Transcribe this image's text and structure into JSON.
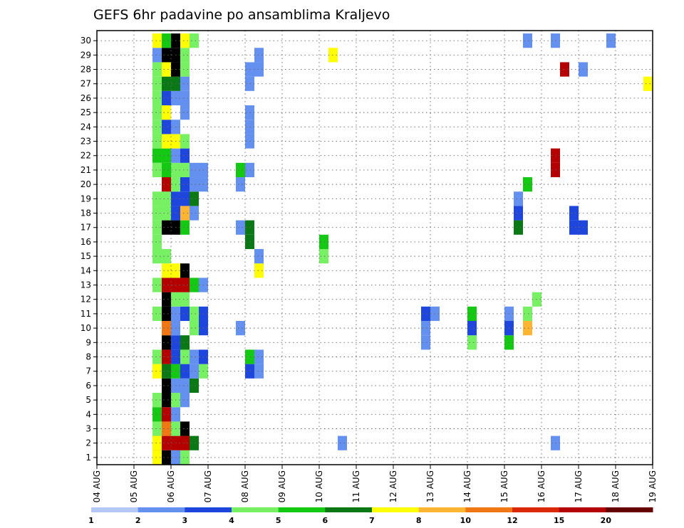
{
  "chart_data": {
    "type": "heatmap",
    "title": "GEFS 6hr padavine po ansamblima Kraljevo",
    "x_tick_labels": [
      "04 AUG",
      "05 AUG",
      "06 AUG",
      "07 AUG",
      "08 AUG",
      "09 AUG",
      "10 AUG",
      "11 AUG",
      "12 AUG",
      "13 AUG",
      "14 AUG",
      "15 AUG",
      "16 AUG",
      "17 AUG",
      "18 AUG",
      "19 AUG"
    ],
    "y_tick_labels": [
      "1",
      "2",
      "3",
      "4",
      "5",
      "6",
      "7",
      "8",
      "9",
      "10",
      "11",
      "12",
      "13",
      "14",
      "15",
      "16",
      "17",
      "18",
      "19",
      "20",
      "21",
      "22",
      "23",
      "24",
      "25",
      "26",
      "27",
      "28",
      "29",
      "30"
    ],
    "xlim_steps": [
      0,
      60
    ],
    "ylim_members": [
      0,
      30
    ],
    "grid": true,
    "legend": "bottom",
    "colorbar": {
      "labels": [
        "1",
        "2",
        "3",
        "4",
        "5",
        "6",
        "7",
        "8",
        "10",
        "12",
        "15",
        "20"
      ],
      "colors": [
        "#b4c8f5",
        "#6490f0",
        "#1e46dc",
        "#78f064",
        "#14c814",
        "#0a7814",
        "#ffff00",
        "#ffb432",
        "#f07814",
        "#dc2800",
        "#b40000",
        "#640000"
      ]
    },
    "cells": [
      [
        0,
        6,
        6
      ],
      [
        1,
        6,
        8
      ],
      [
        2,
        6,
        3
      ],
      [
        3,
        6,
        4
      ],
      [
        4,
        6,
        3
      ],
      [
        6,
        6,
        6
      ],
      [
        7,
        6,
        3
      ],
      [
        10,
        6,
        3
      ],
      [
        10,
        7,
        1
      ],
      [
        10,
        8,
        1
      ],
      [
        10,
        9,
        1
      ],
      [
        15,
        6,
        3
      ],
      [
        16,
        6,
        3
      ],
      [
        17,
        6,
        3
      ],
      [
        17,
        7,
        4
      ],
      [
        21,
        6,
        4
      ],
      [
        24,
        6,
        3
      ],
      [
        25,
        6,
        3
      ],
      [
        26,
        6,
        3
      ],
      [
        27,
        6,
        3
      ],
      [
        28,
        6,
        1
      ],
      [
        29,
        6,
        6
      ],
      [
        1,
        6,
        6
      ],
      [
        12,
        6,
        3
      ],
      [
        14,
        6,
        3
      ],
      [
        18,
        6,
        3
      ],
      [
        20,
        6,
        3
      ],
      [
        22,
        6,
        3
      ],
      [
        23,
        6,
        3
      ],
      [
        0,
        7,
        12
      ],
      [
        1,
        7,
        10
      ],
      [
        2,
        7,
        8
      ],
      [
        3,
        7,
        10
      ],
      [
        4,
        7,
        12
      ],
      [
        5,
        7,
        12
      ],
      [
        6,
        7,
        5
      ],
      [
        7,
        7,
        10
      ],
      [
        8,
        7,
        12
      ],
      [
        9,
        7,
        8
      ],
      [
        10,
        7,
        12
      ],
      [
        11,
        7,
        12
      ],
      [
        12,
        7,
        10
      ],
      [
        13,
        7,
        6
      ],
      [
        14,
        7,
        3
      ],
      [
        16,
        7,
        12
      ],
      [
        17,
        7,
        3
      ],
      [
        18,
        7,
        3
      ],
      [
        19,
        7,
        10
      ],
      [
        20,
        7,
        4
      ],
      [
        21,
        7,
        4
      ],
      [
        22,
        7,
        6
      ],
      [
        23,
        7,
        2
      ],
      [
        24,
        7,
        6
      ],
      [
        25,
        7,
        2
      ],
      [
        26,
        7,
        5
      ],
      [
        27,
        7,
        6
      ],
      [
        28,
        7,
        12
      ],
      [
        29,
        7,
        4
      ],
      [
        0,
        8,
        1
      ],
      [
        1,
        8,
        10
      ],
      [
        2,
        8,
        3
      ],
      [
        3,
        8,
        1
      ],
      [
        4,
        8,
        3
      ],
      [
        5,
        8,
        1
      ],
      [
        6,
        8,
        4
      ],
      [
        7,
        8,
        2
      ],
      [
        8,
        8,
        2
      ],
      [
        9,
        8,
        1
      ],
      [
        11,
        8,
        3
      ],
      [
        12,
        8,
        10
      ],
      [
        13,
        8,
        6
      ],
      [
        16,
        8,
        13
      ],
      [
        17,
        8,
        2
      ],
      [
        18,
        8,
        2
      ],
      [
        19,
        8,
        3
      ],
      [
        20,
        8,
        3
      ],
      [
        21,
        8,
        1
      ],
      [
        22,
        8,
        6
      ],
      [
        23,
        8,
        1
      ],
      [
        25,
        8,
        1
      ],
      [
        26,
        8,
        5
      ],
      [
        27,
        8,
        13
      ],
      [
        28,
        8,
        12
      ],
      [
        29,
        8,
        12
      ],
      [
        0,
        9,
        3
      ],
      [
        1,
        9,
        10
      ],
      [
        2,
        9,
        13
      ],
      [
        4,
        9,
        1
      ],
      [
        5,
        9,
        1
      ],
      [
        6,
        9,
        2
      ],
      [
        7,
        9,
        3
      ],
      [
        8,
        9,
        5
      ],
      [
        10,
        9,
        2
      ],
      [
        11,
        9,
        3
      ],
      [
        12,
        9,
        10
      ],
      [
        13,
        9,
        12
      ],
      [
        16,
        9,
        4
      ],
      [
        17,
        9,
        7
      ],
      [
        18,
        9,
        2
      ],
      [
        19,
        9,
        2
      ],
      [
        20,
        9,
        3
      ],
      [
        21,
        9,
        2
      ],
      [
        22,
        9,
        3
      ],
      [
        24,
        9,
        1
      ],
      [
        25,
        9,
        1
      ],
      [
        26,
        9,
        1
      ],
      [
        27,
        9,
        3
      ],
      [
        28,
        9,
        3
      ],
      [
        29,
        9,
        6
      ],
      [
        1,
        10,
        5
      ],
      [
        5,
        10,
        5
      ],
      [
        6,
        10,
        1
      ],
      [
        7,
        10,
        1
      ],
      [
        9,
        10,
        3
      ],
      [
        10,
        10,
        3
      ],
      [
        12,
        10,
        4
      ],
      [
        17,
        10,
        1
      ],
      [
        18,
        10,
        5
      ],
      [
        19,
        10,
        1
      ],
      [
        20,
        10,
        1
      ],
      [
        29,
        10,
        3
      ],
      [
        6,
        11,
        3
      ],
      [
        7,
        11,
        2
      ],
      [
        9,
        11,
        2
      ],
      [
        10,
        11,
        2
      ],
      [
        12,
        11,
        1
      ],
      [
        19,
        11,
        1
      ],
      [
        20,
        11,
        1
      ],
      [
        9,
        15,
        1
      ],
      [
        16,
        15,
        1
      ],
      [
        20,
        15,
        4
      ],
      [
        19,
        15,
        1
      ],
      [
        6,
        16,
        2
      ],
      [
        7,
        16,
        4
      ],
      [
        15,
        16,
        5
      ],
      [
        16,
        16,
        5
      ],
      [
        20,
        16,
        1
      ],
      [
        22,
        16,
        1
      ],
      [
        27,
        16,
        1
      ],
      [
        23,
        16,
        1
      ],
      [
        24,
        16,
        1
      ],
      [
        26,
        16,
        1
      ],
      [
        6,
        17,
        1
      ],
      [
        7,
        17,
        1
      ],
      [
        13,
        17,
        6
      ],
      [
        14,
        17,
        1
      ],
      [
        27,
        17,
        1
      ],
      [
        28,
        17,
        1
      ],
      [
        14,
        24,
        3
      ],
      [
        15,
        24,
        4
      ],
      [
        28,
        25,
        6
      ],
      [
        1,
        26,
        1
      ],
      [
        8,
        35,
        1
      ],
      [
        9,
        35,
        1
      ],
      [
        10,
        35,
        2
      ],
      [
        10,
        36,
        1
      ],
      [
        8,
        40,
        3
      ],
      [
        9,
        40,
        2
      ],
      [
        10,
        40,
        4
      ],
      [
        8,
        44,
        4
      ],
      [
        9,
        44,
        2
      ],
      [
        10,
        44,
        1
      ],
      [
        16,
        45,
        5
      ],
      [
        17,
        45,
        2
      ],
      [
        18,
        45,
        1
      ],
      [
        9,
        46,
        7
      ],
      [
        10,
        46,
        3
      ],
      [
        19,
        46,
        4
      ],
      [
        29,
        46,
        1
      ],
      [
        11,
        47,
        3
      ],
      [
        1,
        49,
        1
      ],
      [
        20,
        49,
        10
      ],
      [
        21,
        49,
        10
      ],
      [
        29,
        49,
        1
      ],
      [
        27,
        50,
        10
      ],
      [
        16,
        51,
        2
      ],
      [
        17,
        51,
        2
      ],
      [
        16,
        52,
        2
      ],
      [
        27,
        52,
        1
      ],
      [
        29,
        55,
        1
      ],
      [
        26,
        59,
        6
      ],
      [
        10,
        60,
        1
      ]
    ]
  }
}
